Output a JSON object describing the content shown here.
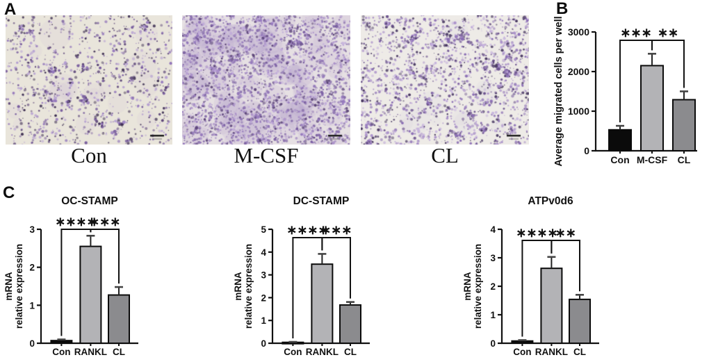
{
  "figure": {
    "panels": {
      "a": {
        "label": "A",
        "images": [
          {
            "label": "Con",
            "stain": "crystal-violet",
            "cell_density": "low"
          },
          {
            "label": "M-CSF",
            "stain": "crystal-violet",
            "cell_density": "high"
          },
          {
            "label": "CL",
            "stain": "crystal-violet",
            "cell_density": "medium"
          }
        ]
      },
      "b": {
        "label": "B"
      },
      "c": {
        "label": "C"
      }
    },
    "colors": {
      "bar_black": "#0b0b0b",
      "bar_light_gray": "#b3b3b6",
      "bar_dark_gray": "#8b8b8e",
      "axis": "#111111",
      "stain_purple": "#8a6db4"
    }
  },
  "chart_data": [
    {
      "id": "b-migration",
      "type": "bar",
      "title": "",
      "ylabel": "Average migrated cells per well",
      "xlabel": "",
      "categories": [
        "Con",
        "M-CSF",
        "CL"
      ],
      "values": [
        530,
        2150,
        1290
      ],
      "errors": [
        100,
        300,
        210
      ],
      "ylim": [
        0,
        3000
      ],
      "yticks": [
        0,
        1000,
        2000,
        3000
      ],
      "bar_colors": [
        "#0b0b0b",
        "#b3b3b6",
        "#8b8b8e"
      ],
      "grid": false,
      "significance": [
        {
          "from": 0,
          "to": 1,
          "label": "***"
        },
        {
          "from": 1,
          "to": 2,
          "label": "**"
        }
      ]
    },
    {
      "id": "oc-stamp",
      "type": "bar",
      "title": "OC-STAMP",
      "ylabel": "mRNA\nrelative expression",
      "xlabel": "",
      "categories": [
        "Con",
        "RANKL",
        "CL"
      ],
      "values": [
        0.07,
        2.55,
        1.27
      ],
      "errors": [
        0.03,
        0.28,
        0.21
      ],
      "ylim": [
        0,
        3
      ],
      "yticks": [
        0,
        1,
        2,
        3
      ],
      "bar_colors": [
        "#0b0b0b",
        "#b3b3b6",
        "#8b8b8e"
      ],
      "grid": false,
      "significance": [
        {
          "from": 0,
          "to": 1,
          "label": "****"
        },
        {
          "from": 1,
          "to": 2,
          "label": "***"
        }
      ]
    },
    {
      "id": "dc-stamp",
      "type": "bar",
      "title": "DC-STAMP",
      "ylabel": "mRNA\nrelative expression",
      "xlabel": "",
      "categories": [
        "Con",
        "RANKL",
        "CL"
      ],
      "values": [
        0.04,
        3.47,
        1.68
      ],
      "errors": [
        0.02,
        0.45,
        0.13
      ],
      "ylim": [
        0,
        5
      ],
      "yticks": [
        0,
        1,
        2,
        3,
        4,
        5
      ],
      "bar_colors": [
        "#0b0b0b",
        "#b3b3b6",
        "#8b8b8e"
      ],
      "grid": false,
      "significance": [
        {
          "from": 0,
          "to": 1,
          "label": "****"
        },
        {
          "from": 1,
          "to": 2,
          "label": "***"
        }
      ]
    },
    {
      "id": "atpv0d6",
      "type": "bar",
      "title": "ATPv0d6",
      "ylabel": "mRNA\nrelative expression",
      "xlabel": "",
      "categories": [
        "Con",
        "RANKL",
        "CL"
      ],
      "values": [
        0.08,
        2.63,
        1.54
      ],
      "errors": [
        0.03,
        0.4,
        0.16
      ],
      "ylim": [
        0,
        4
      ],
      "yticks": [
        0,
        1,
        2,
        3,
        4
      ],
      "bar_colors": [
        "#0b0b0b",
        "#b3b3b6",
        "#8b8b8e"
      ],
      "grid": false,
      "significance": [
        {
          "from": 0,
          "to": 1,
          "label": "****"
        },
        {
          "from": 1,
          "to": 2,
          "label": "**"
        }
      ]
    }
  ]
}
